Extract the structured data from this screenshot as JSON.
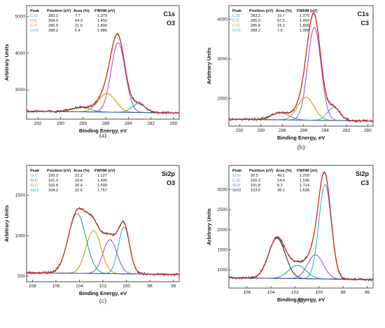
{
  "colors": {
    "envelope": "#d62728",
    "raw": "#333333",
    "background": "#3a4ec0",
    "C-Si": "#27b8c8",
    "C-C": "#9b59c9",
    "C-O": "#c8a000",
    "C=O": "#2ab0c8",
    "Si-C": "#27b8c8",
    "Si-O": "#9b59c9",
    "Si-Si": "#27b8c8",
    "Si-O2": "#2aa0a0",
    "SiO2": "#2aa0a0"
  },
  "chart_data": [
    {
      "type": "line",
      "panel": "(a)",
      "title": "C1s",
      "subtitle": "O3",
      "xlabel": "Binding Energy, eV",
      "ylabel": "Arbitrary Units",
      "xlim": [
        293,
        279.5
      ],
      "ylim": [
        2200,
        5300
      ],
      "xticks": [
        292,
        290,
        288,
        286,
        284,
        282,
        280
      ],
      "yticks": [
        3000,
        4000,
        5000
      ],
      "legend_position": "top-left",
      "legend_headers": [
        "Peak",
        "Position (eV)",
        "Area (%)",
        "FWHM (eV)"
      ],
      "background_level": 2370,
      "series": [
        {
          "name": "C-Si",
          "position": "283.1",
          "area": "7.7",
          "fwhm": "1.379",
          "center": 283.1,
          "height": 240,
          "width": 1.379,
          "color_key": "C-Si"
        },
        {
          "name": "C-C",
          "position": "284.9",
          "area": "64.3",
          "fwhm": "1.459",
          "center": 284.9,
          "height": 1900,
          "width": 1.459,
          "color_key": "C-C"
        },
        {
          "name": "C-O",
          "position": "285.9",
          "area": "21.6",
          "fwhm": "1.800",
          "center": 285.9,
          "height": 510,
          "width": 1.8,
          "color_key": "C-O"
        },
        {
          "name": "C=O",
          "position": "288.2",
          "area": "6.4",
          "fwhm": "1.985",
          "center": 288.2,
          "height": 120,
          "width": 1.985,
          "color_key": "C=O"
        }
      ]
    },
    {
      "type": "line",
      "panel": "(b)",
      "title": "C1s",
      "subtitle": "C3",
      "xlabel": "Binding Energy, eV",
      "ylabel": "Arbitrary Units",
      "xlim": [
        293,
        279.5
      ],
      "ylim": [
        1300,
        4350
      ],
      "xticks": [
        292,
        290,
        288,
        286,
        284,
        282,
        280
      ],
      "yticks": [
        2000,
        3000,
        4000
      ],
      "legend_position": "top-left",
      "legend_headers": [
        "Peak",
        "Position (eV)",
        "Area (%)",
        "FWHM (eV)"
      ],
      "background_level": 1430,
      "series": [
        {
          "name": "C-Si",
          "position": "283.2",
          "area": "10.7",
          "fwhm": "1.379",
          "center": 283.2,
          "height": 330,
          "width": 1.379,
          "color_key": "C-Si"
        },
        {
          "name": "C-C",
          "position": "285.0",
          "area": "62.5",
          "fwhm": "1.459",
          "center": 285.0,
          "height": 2350,
          "width": 1.459,
          "color_key": "C-C"
        },
        {
          "name": "C-O",
          "position": "285.8",
          "area": "19.2",
          "fwhm": "1.800",
          "center": 285.8,
          "height": 580,
          "width": 1.8,
          "color_key": "C-O"
        },
        {
          "name": "C=O",
          "position": "288.2",
          "area": "7.5",
          "fwhm": "1.985",
          "center": 288.2,
          "height": 180,
          "width": 1.985,
          "color_key": "C=O"
        }
      ]
    },
    {
      "type": "line",
      "panel": "(c)",
      "title": "Si2p",
      "subtitle": "O3",
      "xlabel": "Binding Energy, eV",
      "ylabel": "Arbitrary Units",
      "xlim": [
        108.5,
        95.5
      ],
      "ylim": [
        430,
        1870
      ],
      "xticks": [
        108,
        106,
        104,
        102,
        100,
        98,
        96
      ],
      "yticks": [
        500,
        1000,
        1500
      ],
      "legend_position": "top-left",
      "legend_headers": [
        "Peak",
        "Position (eV)",
        "Area (%)",
        "FWHM (eV)"
      ],
      "background_level": 520,
      "series": [
        {
          "name": "Si-C",
          "position": "100.2",
          "area": "22.2",
          "fwhm": "1.127",
          "center": 100.2,
          "height": 580,
          "width": 1.127,
          "color_key": "Si-C"
        },
        {
          "name": "Si-O",
          "position": "101.4",
          "area": "18.8",
          "fwhm": "1.400",
          "center": 101.4,
          "height": 420,
          "width": 1.4,
          "color_key": "Si-O"
        },
        {
          "name": "Si-O",
          "position": "102.8",
          "area": "26.4",
          "fwhm": "1.500",
          "center": 102.8,
          "height": 530,
          "width": 1.5,
          "color_key": "C-O"
        },
        {
          "name": "SiO2",
          "position": "104.2",
          "area": "32.6",
          "fwhm": "1.757",
          "center": 104.2,
          "height": 740,
          "width": 1.757,
          "color_key": "SiO2"
        }
      ]
    },
    {
      "type": "line",
      "panel": "(d)",
      "title": "Si2p",
      "subtitle": "C3",
      "xlabel": "Binding Energy, eV",
      "ylabel": "Arbitrary Units",
      "xlim": [
        107.5,
        95.5
      ],
      "ylim": [
        550,
        3600
      ],
      "xticks": [
        106,
        104,
        102,
        100,
        98,
        96
      ],
      "yticks": [
        1000,
        1500,
        2000,
        2500,
        3000
      ],
      "legend_position": "top-left",
      "legend_headers": [
        "Peak",
        "Position (eV)",
        "Area (%)",
        "FWHM (eV)"
      ],
      "background_level": 760,
      "series": [
        {
          "name": "Si-Si",
          "position": "99.5",
          "area": "49.1",
          "fwhm": "1.209",
          "center": 99.5,
          "height": 2350,
          "width": 1.209,
          "color_key": "Si-Si"
        },
        {
          "name": "C-Si",
          "position": "100.3",
          "area": "14.5",
          "fwhm": "1.536",
          "center": 100.3,
          "height": 600,
          "width": 1.536,
          "color_key": "C-C"
        },
        {
          "name": "Si-O",
          "position": "101.8",
          "area": "8.3",
          "fwhm": "1.714",
          "center": 101.8,
          "height": 330,
          "width": 1.714,
          "color_key": "Si-O2"
        },
        {
          "name": "SiO2",
          "position": "103.5",
          "area": "28.1",
          "fwhm": "1.636",
          "center": 103.5,
          "height": 1000,
          "width": 1.636,
          "color_key": "raw"
        }
      ]
    }
  ]
}
